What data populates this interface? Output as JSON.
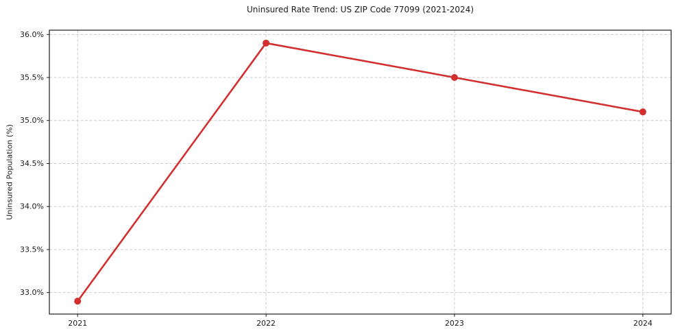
{
  "chart_data": {
    "type": "line",
    "title": "Uninsured Rate Trend: US ZIP Code 77099 (2021-2024)",
    "xlabel": "",
    "ylabel": "Uninsured Population (%)",
    "x": [
      2021,
      2022,
      2023,
      2024
    ],
    "x_tick_labels": [
      "2021",
      "2022",
      "2023",
      "2024"
    ],
    "series": [
      {
        "name": "Uninsured Population (%)",
        "values": [
          32.9,
          35.9,
          35.5,
          35.1
        ]
      }
    ],
    "y_ticks": [
      33.0,
      33.5,
      34.0,
      34.5,
      35.0,
      35.5,
      36.0
    ],
    "y_tick_labels": [
      "33.0%",
      "33.5%",
      "34.0%",
      "34.5%",
      "35.0%",
      "35.5%",
      "36.0%"
    ],
    "xlim": [
      2020.85,
      2024.15
    ],
    "ylim": [
      32.75,
      36.05
    ],
    "grid": true,
    "grid_style": "dashed",
    "legend_position": "none",
    "colors": {
      "line": "#d32f2f",
      "marker": "#d32f2f",
      "grid": "#cccccc",
      "frame": "#1a1a1a",
      "text": "#1a1a1a",
      "background": "#ffffff"
    }
  }
}
